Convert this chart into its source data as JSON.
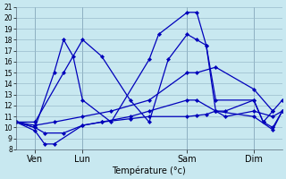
{
  "xlabel": "Température (°c)",
  "bg_color": "#c8e8f0",
  "line_color": "#0000bb",
  "grid_color": "#99bbcc",
  "ylim": [
    8,
    21
  ],
  "yticks": [
    8,
    9,
    10,
    11,
    12,
    13,
    14,
    15,
    16,
    17,
    18,
    19,
    20,
    21
  ],
  "xtick_labels": [
    "Ven",
    "Lun",
    "Sam",
    "Dim"
  ],
  "xtick_positions": [
    2,
    7,
    18,
    25
  ],
  "vline_positions": [
    2,
    7,
    18,
    25
  ],
  "xlim": [
    0,
    28
  ],
  "series": [
    {
      "x": [
        0,
        2,
        3,
        4,
        7,
        9,
        12,
        14,
        18,
        19,
        20,
        21,
        25,
        27,
        28
      ],
      "y": [
        10.5,
        9.7,
        8.5,
        8.5,
        10.2,
        10.5,
        10.8,
        11.0,
        11.0,
        11.1,
        11.2,
        11.5,
        11.0,
        9.8,
        11.5
      ]
    },
    {
      "x": [
        0,
        2,
        3,
        5,
        7,
        9,
        12,
        14,
        18,
        19,
        21,
        22,
        25,
        27,
        28
      ],
      "y": [
        10.5,
        10.0,
        9.5,
        9.5,
        10.2,
        10.5,
        11.0,
        11.5,
        12.5,
        12.5,
        11.5,
        11.0,
        11.5,
        11.0,
        11.5
      ]
    },
    {
      "x": [
        0,
        2,
        4,
        7,
        10,
        14,
        18,
        19,
        21,
        25,
        27,
        28
      ],
      "y": [
        10.5,
        10.2,
        10.5,
        11.0,
        11.5,
        12.5,
        15.0,
        15.0,
        15.5,
        13.5,
        11.5,
        12.5
      ]
    },
    {
      "x": [
        0,
        2,
        5,
        7,
        9,
        12,
        14,
        16,
        18,
        19,
        20,
        21,
        22,
        25,
        26,
        27
      ],
      "y": [
        10.5,
        10.5,
        15.0,
        18.0,
        16.5,
        12.5,
        10.5,
        16.2,
        18.5,
        18.0,
        17.5,
        11.5,
        11.5,
        12.5,
        10.5,
        11.5
      ]
    },
    {
      "x": [
        0,
        2,
        4,
        5,
        6,
        7,
        10,
        14,
        15,
        18,
        19,
        20,
        21,
        25,
        26,
        27,
        28
      ],
      "y": [
        10.5,
        10.0,
        15.0,
        18.0,
        16.5,
        12.5,
        10.5,
        16.2,
        18.5,
        20.5,
        20.5,
        17.5,
        12.5,
        12.5,
        10.5,
        10.0,
        11.5
      ]
    }
  ]
}
